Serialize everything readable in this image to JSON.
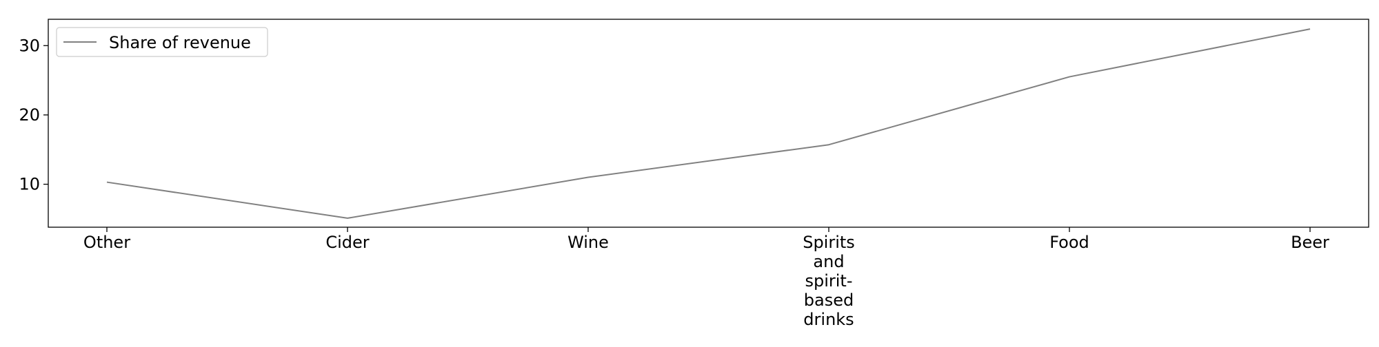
{
  "chart_data": {
    "type": "line",
    "categories": [
      "Other",
      "Cider",
      "Wine",
      "Spirits and spirit-based drinks",
      "Food",
      "Beer"
    ],
    "category_label_lines": [
      [
        "Other"
      ],
      [
        "Cider"
      ],
      [
        "Wine"
      ],
      [
        "Spirits",
        "and",
        "spirit-",
        "based",
        "drinks"
      ],
      [
        "Food"
      ],
      [
        "Beer"
      ]
    ],
    "series": [
      {
        "name": "Share of revenue",
        "values": [
          10.3,
          5.1,
          11.0,
          15.7,
          25.5,
          32.4
        ],
        "color": "#808080"
      }
    ],
    "title": "",
    "xlabel": "",
    "ylabel": "",
    "ylim": [
      3.8,
      33.8
    ],
    "yticks": [
      10,
      20,
      30
    ],
    "grid": false,
    "legend_position": "top-left"
  }
}
